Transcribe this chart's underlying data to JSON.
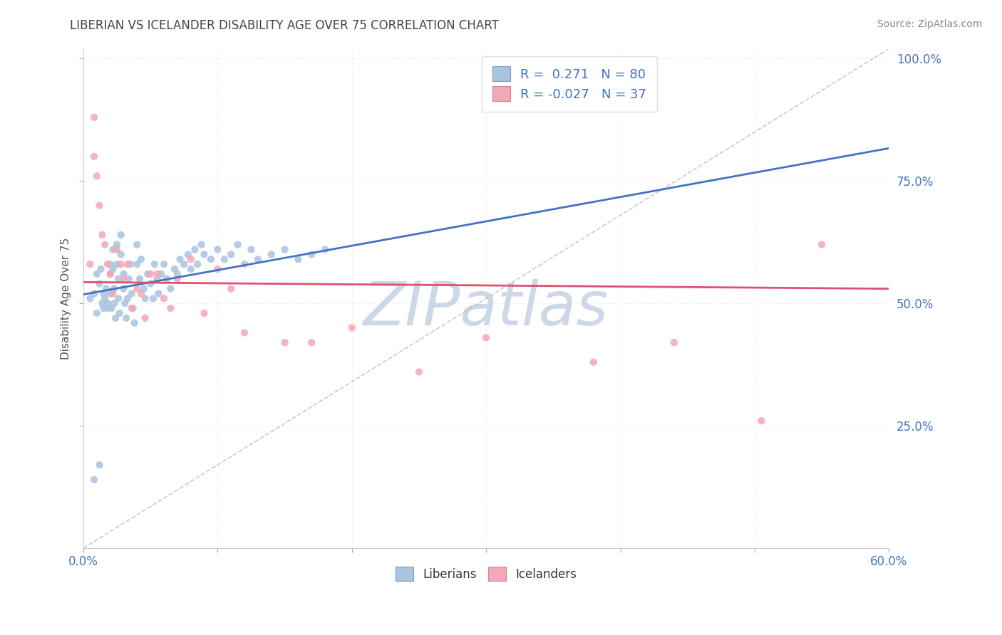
{
  "title": "LIBERIAN VS ICELANDER DISABILITY AGE OVER 75 CORRELATION CHART",
  "source": "Source: ZipAtlas.com",
  "ylabel_label": "Disability Age Over 75",
  "xmin": 0.0,
  "xmax": 0.6,
  "ymin": 0.0,
  "ymax": 1.02,
  "xticks": [
    0.0,
    0.1,
    0.2,
    0.3,
    0.4,
    0.5,
    0.6
  ],
  "yticks": [
    0.25,
    0.5,
    0.75,
    1.0
  ],
  "ytick_labels": [
    "25.0%",
    "50.0%",
    "75.0%",
    "100.0%"
  ],
  "liberian_R": 0.271,
  "liberian_N": 80,
  "icelander_R": -0.027,
  "icelander_N": 37,
  "liberian_color": "#a8c4e0",
  "icelander_color": "#f4a7b5",
  "liberian_line_color": "#4472c4",
  "icelander_line_color": "#e05070",
  "trend_line_color": "#b8c8d8",
  "watermark_text": "ZIPatlas",
  "watermark_color": "#ccd8e8",
  "liberian_x": [
    0.005,
    0.008,
    0.01,
    0.01,
    0.012,
    0.013,
    0.014,
    0.015,
    0.015,
    0.016,
    0.017,
    0.018,
    0.018,
    0.02,
    0.02,
    0.02,
    0.021,
    0.022,
    0.022,
    0.023,
    0.023,
    0.024,
    0.025,
    0.025,
    0.026,
    0.026,
    0.027,
    0.028,
    0.028,
    0.03,
    0.03,
    0.031,
    0.032,
    0.033,
    0.034,
    0.035,
    0.036,
    0.037,
    0.038,
    0.04,
    0.04,
    0.042,
    0.043,
    0.045,
    0.046,
    0.048,
    0.05,
    0.052,
    0.053,
    0.055,
    0.056,
    0.058,
    0.06,
    0.062,
    0.065,
    0.068,
    0.07,
    0.072,
    0.075,
    0.078,
    0.08,
    0.083,
    0.085,
    0.088,
    0.09,
    0.095,
    0.1,
    0.105,
    0.11,
    0.115,
    0.12,
    0.125,
    0.13,
    0.14,
    0.15,
    0.16,
    0.17,
    0.18,
    0.008,
    0.012
  ],
  "liberian_y": [
    0.51,
    0.52,
    0.48,
    0.56,
    0.54,
    0.57,
    0.5,
    0.49,
    0.52,
    0.51,
    0.53,
    0.5,
    0.49,
    0.58,
    0.56,
    0.52,
    0.49,
    0.61,
    0.57,
    0.53,
    0.5,
    0.47,
    0.62,
    0.58,
    0.55,
    0.51,
    0.48,
    0.64,
    0.6,
    0.56,
    0.53,
    0.5,
    0.47,
    0.51,
    0.55,
    0.58,
    0.52,
    0.49,
    0.46,
    0.58,
    0.62,
    0.55,
    0.59,
    0.53,
    0.51,
    0.56,
    0.54,
    0.51,
    0.58,
    0.55,
    0.52,
    0.56,
    0.58,
    0.55,
    0.53,
    0.57,
    0.56,
    0.59,
    0.58,
    0.6,
    0.57,
    0.61,
    0.58,
    0.62,
    0.6,
    0.59,
    0.61,
    0.59,
    0.6,
    0.62,
    0.58,
    0.61,
    0.59,
    0.6,
    0.61,
    0.59,
    0.6,
    0.61,
    0.14,
    0.17
  ],
  "icelander_x": [
    0.005,
    0.008,
    0.01,
    0.012,
    0.014,
    0.016,
    0.018,
    0.02,
    0.022,
    0.025,
    0.028,
    0.03,
    0.033,
    0.036,
    0.04,
    0.043,
    0.046,
    0.05,
    0.055,
    0.06,
    0.065,
    0.07,
    0.08,
    0.09,
    0.1,
    0.11,
    0.12,
    0.15,
    0.17,
    0.2,
    0.25,
    0.3,
    0.38,
    0.44,
    0.505,
    0.008,
    0.55
  ],
  "icelander_y": [
    0.58,
    0.8,
    0.76,
    0.7,
    0.64,
    0.62,
    0.58,
    0.56,
    0.52,
    0.61,
    0.58,
    0.55,
    0.58,
    0.49,
    0.53,
    0.52,
    0.47,
    0.56,
    0.56,
    0.51,
    0.49,
    0.55,
    0.59,
    0.48,
    0.57,
    0.53,
    0.44,
    0.42,
    0.42,
    0.45,
    0.36,
    0.43,
    0.38,
    0.42,
    0.26,
    0.88,
    0.62
  ],
  "background_color": "#ffffff",
  "grid_color": "#e8e8e8"
}
